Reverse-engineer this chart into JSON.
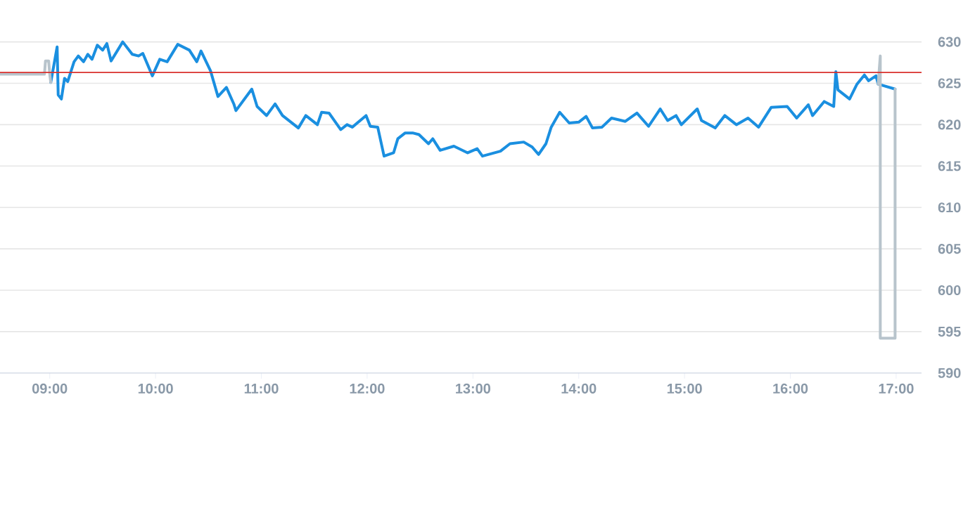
{
  "chart_data": {
    "type": "line",
    "xlim": [
      8.53,
      17.24
    ],
    "ylim": [
      590,
      630
    ],
    "xticks": [
      {
        "value": 9,
        "label": "09:00"
      },
      {
        "value": 10,
        "label": "10:00"
      },
      {
        "value": 11,
        "label": "11:00"
      },
      {
        "value": 12,
        "label": "12:00"
      },
      {
        "value": 13,
        "label": "13:00"
      },
      {
        "value": 14,
        "label": "14:00"
      },
      {
        "value": 15,
        "label": "15:00"
      },
      {
        "value": 16,
        "label": "16:00"
      },
      {
        "value": 17,
        "label": "17:00"
      }
    ],
    "yticks": [
      590,
      595,
      600,
      605,
      610,
      615,
      620,
      625,
      630
    ],
    "grid": "y",
    "marker": "none",
    "line_style": "solid",
    "ref_lines": [
      {
        "axis": "y",
        "value": 626.3,
        "color": "#d9302c"
      }
    ],
    "series": [
      {
        "color": "#1a8fe0",
        "x": [
          9.01,
          9.07,
          9.08,
          9.11,
          9.14,
          9.17,
          9.23,
          9.27,
          9.32,
          9.36,
          9.4,
          9.45,
          9.5,
          9.54,
          9.58,
          9.69,
          9.78,
          9.84,
          9.88,
          9.97,
          10.04,
          10.11,
          10.21,
          10.32,
          10.39,
          10.43,
          10.52,
          10.59,
          10.67,
          10.74,
          10.76,
          10.91,
          10.96,
          11.05,
          11.13,
          11.2,
          11.35,
          11.42,
          11.53,
          11.57,
          11.64,
          11.75,
          11.81,
          11.86,
          11.99,
          12.03,
          12.1,
          12.16,
          12.25,
          12.29,
          12.36,
          12.43,
          12.49,
          12.58,
          12.62,
          12.69,
          12.82,
          12.95,
          13.04,
          13.09,
          13.26,
          13.35,
          13.48,
          13.56,
          13.62,
          13.69,
          13.74,
          13.82,
          13.91,
          14.0,
          14.07,
          14.13,
          14.22,
          14.31,
          14.44,
          14.55,
          14.66,
          14.77,
          14.84,
          14.92,
          14.97,
          15.12,
          15.16,
          15.29,
          15.38,
          15.49,
          15.6,
          15.7,
          15.82,
          15.97,
          16.06,
          16.17,
          16.21,
          16.32,
          16.41,
          16.43,
          16.45,
          16.56,
          16.63,
          16.7,
          16.74,
          16.81,
          16.83,
          16.99
        ],
        "values": [
          625.1,
          629.4,
          623.6,
          623.1,
          625.6,
          625.2,
          627.6,
          628.3,
          627.6,
          628.5,
          627.9,
          629.6,
          629.0,
          629.8,
          627.7,
          630.0,
          628.5,
          628.3,
          628.6,
          625.9,
          627.9,
          627.6,
          629.7,
          629.0,
          627.6,
          628.9,
          626.5,
          623.4,
          624.5,
          622.5,
          621.7,
          624.3,
          622.2,
          621.1,
          622.5,
          621.1,
          619.6,
          621.1,
          620.0,
          621.5,
          621.4,
          619.4,
          620.0,
          619.7,
          621.1,
          619.8,
          619.7,
          616.2,
          616.6,
          618.3,
          619.0,
          619.0,
          618.8,
          617.7,
          618.3,
          616.9,
          617.4,
          616.6,
          617.1,
          616.2,
          616.8,
          617.7,
          617.9,
          617.3,
          616.4,
          617.7,
          619.7,
          621.5,
          620.2,
          620.3,
          621.0,
          619.6,
          619.7,
          620.8,
          620.4,
          621.4,
          619.8,
          621.9,
          620.5,
          621.1,
          620.0,
          621.9,
          620.5,
          619.6,
          621.1,
          620.0,
          620.8,
          619.7,
          622.1,
          622.2,
          620.8,
          622.4,
          621.1,
          622.8,
          622.2,
          626.4,
          624.2,
          623.1,
          624.9,
          626.0,
          625.3,
          625.9,
          624.9,
          624.3
        ]
      },
      {
        "color": "#b8c4cc",
        "x": [
          8.53,
          8.95,
          8.96,
          8.99,
          9.0,
          9.01
        ],
        "values": [
          626.1,
          626.1,
          627.7,
          627.7,
          626.1,
          625.1
        ]
      },
      {
        "color": "#b8c4cc",
        "x": [
          16.83,
          16.85,
          16.85,
          16.99,
          16.99
        ],
        "values": [
          624.9,
          628.3,
          594.2,
          594.2,
          624.3
        ]
      }
    ]
  }
}
